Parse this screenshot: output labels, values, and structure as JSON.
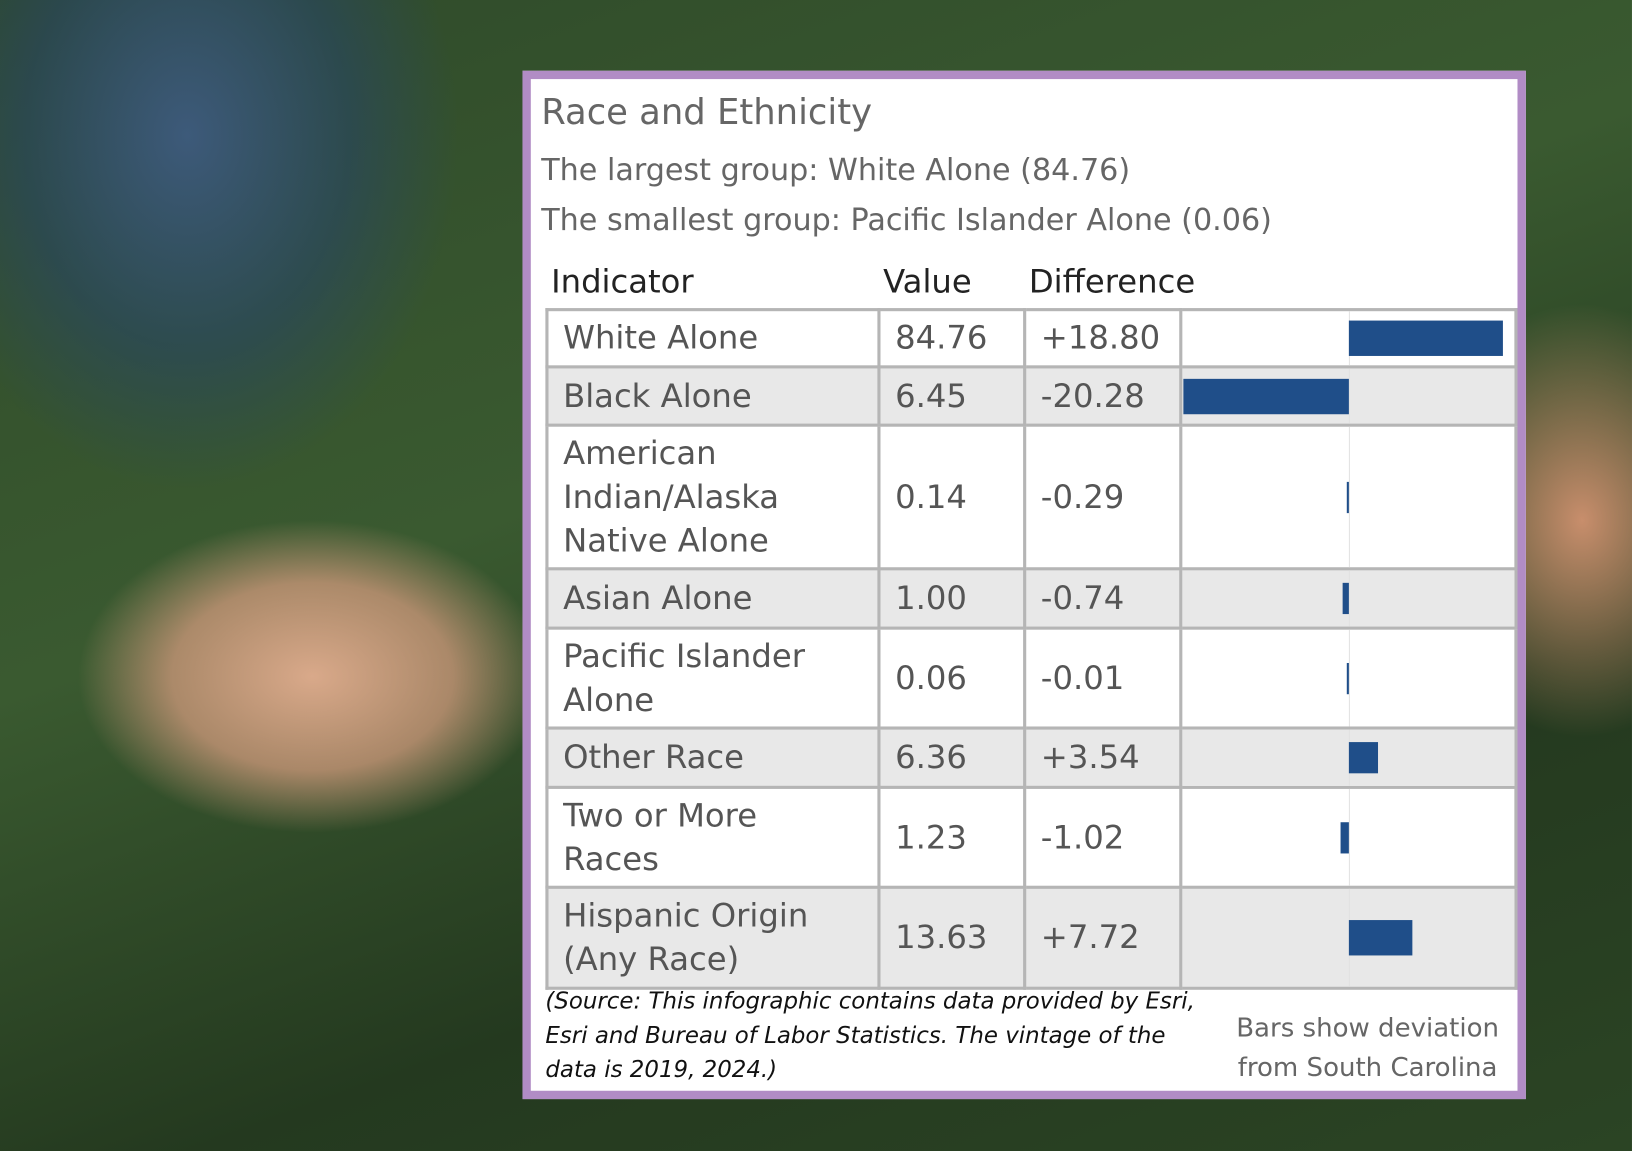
{
  "panel": {
    "title": "Race and Ethnicity",
    "largest": "The largest group: White Alone (84.76)",
    "smallest": "The smallest group: Pacific Islander Alone (0.06)",
    "table": {
      "columns": [
        "Indicator",
        "Value",
        "Difference"
      ],
      "rows": [
        {
          "indicator": "White Alone",
          "value": "84.76",
          "difference": 18.8,
          "difference_label": "+18.80"
        },
        {
          "indicator": "Black Alone",
          "value": "6.45",
          "difference": -20.28,
          "difference_label": "-20.28"
        },
        {
          "indicator": "American Indian/Alaska Native Alone",
          "value": "0.14",
          "difference": -0.29,
          "difference_label": "-0.29"
        },
        {
          "indicator": "Asian Alone",
          "value": "1.00",
          "difference": -0.74,
          "difference_label": "-0.74"
        },
        {
          "indicator": "Pacific Islander Alone",
          "value": "0.06",
          "difference": -0.01,
          "difference_label": "-0.01"
        },
        {
          "indicator": "Other Race",
          "value": "6.36",
          "difference": 3.54,
          "difference_label": "+3.54"
        },
        {
          "indicator": "Two or More Races",
          "value": "1.23",
          "difference": -1.02,
          "difference_label": "-1.02"
        },
        {
          "indicator": "Hispanic Origin (Any Race)",
          "value": "13.63",
          "difference": 7.72,
          "difference_label": "+7.72"
        }
      ]
    },
    "source": "(Source: This infographic contains data provided by Esri, Esri and Bureau of Labor Statistics. The vintage of the data is 2019, 2024.)",
    "bars_note": "Bars show deviation from South Carolina"
  }
}
